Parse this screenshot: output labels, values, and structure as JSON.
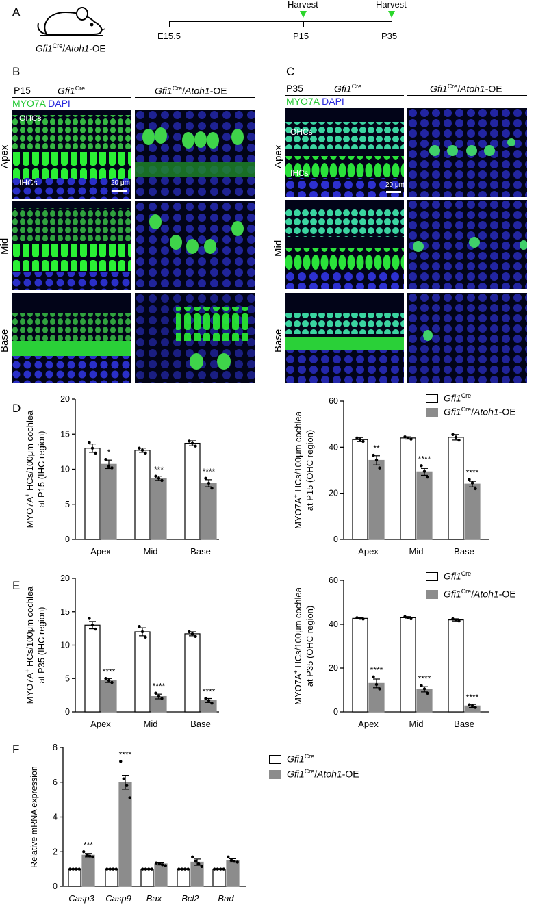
{
  "panelA": {
    "letter": "A",
    "harvest_label": "Harvest",
    "genotype": {
      "gene": "Gfi1",
      "sup": "Cre",
      "suffix_gene": "Atoh1",
      "suffix": "-OE"
    },
    "timepoints": [
      "E15.5",
      "P15",
      "P35"
    ]
  },
  "panelB": {
    "letter": "B",
    "age": "P15",
    "ctrl": {
      "gene": "Gfi1",
      "sup": "Cre"
    },
    "oe": {
      "gene": "Gfi1",
      "sup": "Cre",
      "gene2": "Atoh1",
      "suffix": "-OE"
    },
    "stain1": "MYO7A",
    "stain2": "DAPI",
    "regions": [
      "Apex",
      "Mid",
      "Base"
    ],
    "ohc_label": "OHCs",
    "ihc_label": "IHCs",
    "scale": "20 μm"
  },
  "panelC": {
    "letter": "C",
    "age": "P35",
    "ctrl": {
      "gene": "Gfi1",
      "sup": "Cre"
    },
    "oe": {
      "gene": "Gfi1",
      "sup": "Cre",
      "gene2": "Atoh1",
      "suffix": "-OE"
    },
    "stain1": "MYO7A",
    "stain2": "DAPI",
    "regions": [
      "Apex",
      "Mid",
      "Base"
    ],
    "ohc_label": "OHCs",
    "ihc_label": "IHCs",
    "scale": "20 μm"
  },
  "legend": {
    "ctrl": {
      "gene": "Gfi1",
      "sup": "Cre"
    },
    "oe": {
      "gene": "Gfi1",
      "sup": "Cre",
      "gene2": "Atoh1",
      "suffix": "-OE"
    }
  },
  "colors": {
    "ctrl_fill": "#ffffff",
    "oe_fill": "#8c8c8c",
    "myo7a": "#22c832",
    "dapi": "#2828dc"
  },
  "chart_data": [
    {
      "id": "D-left",
      "panel": "D",
      "type": "bar",
      "ylabel_line1": "MYO7A",
      "ylabel_sup": "+",
      "ylabel_rest": " HCs/100μm cochlea",
      "ylabel_line2": "at P15 (IHC region)",
      "categories": [
        "Apex",
        "Mid",
        "Base"
      ],
      "ylim": [
        0,
        20
      ],
      "yticks": [
        0,
        5,
        10,
        15,
        20
      ],
      "series": [
        {
          "values": [
            13.0,
            12.7,
            13.7
          ],
          "err": [
            0.6,
            0.3,
            0.35
          ],
          "points": [
            [
              13.8,
              13.0,
              12.3
            ],
            [
              13.0,
              12.7,
              12.3
            ],
            [
              14.0,
              13.7,
              13.3
            ]
          ]
        },
        {
          "values": [
            10.7,
            8.7,
            8.0
          ],
          "err": [
            0.6,
            0.3,
            0.5
          ],
          "points": [
            [
              11.4,
              10.4,
              10.2
            ],
            [
              9.0,
              8.7,
              8.4
            ],
            [
              8.7,
              8.0,
              7.3
            ]
          ]
        }
      ],
      "stars": [
        "*",
        "***",
        "****"
      ]
    },
    {
      "id": "D-right",
      "panel": "D",
      "type": "bar",
      "ylabel_line1": "MYO7A",
      "ylabel_sup": "+",
      "ylabel_rest": " HCs/100μm cochlea",
      "ylabel_line2": "at P15 (OHC region)",
      "categories": [
        "Apex",
        "Mid",
        "Base"
      ],
      "ylim": [
        0,
        60
      ],
      "yticks": [
        0,
        20,
        40,
        60
      ],
      "series": [
        {
          "values": [
            43.3,
            44.0,
            44.3
          ],
          "err": [
            0.9,
            0.5,
            1.2
          ],
          "points": [
            [
              44.0,
              43.3,
              42.5
            ],
            [
              44.5,
              44.0,
              43.5
            ],
            [
              45.5,
              44.3,
              43.0
            ]
          ]
        },
        {
          "values": [
            34.3,
            29.3,
            24.0
          ],
          "err": [
            2.0,
            1.5,
            1.2
          ],
          "points": [
            [
              36.5,
              34.5,
              31.0
            ],
            [
              32.0,
              29.5,
              27.0
            ],
            [
              26.0,
              24.5,
              22.0
            ]
          ]
        }
      ],
      "stars": [
        "**",
        "****",
        "****"
      ]
    },
    {
      "id": "E-left",
      "panel": "E",
      "type": "bar",
      "ylabel_line1": "MYO7A",
      "ylabel_sup": "+",
      "ylabel_rest": " HCs/100μm cochlea",
      "ylabel_line2": "at P35 (IHC region)",
      "categories": [
        "Apex",
        "Mid",
        "Base"
      ],
      "ylim": [
        0,
        20
      ],
      "yticks": [
        0,
        5,
        10,
        15,
        20
      ],
      "series": [
        {
          "values": [
            13.0,
            12.0,
            11.7
          ],
          "err": [
            0.55,
            0.6,
            0.3
          ],
          "points": [
            [
              14.0,
              13.0,
              12.4
            ],
            [
              12.8,
              12.0,
              11.2
            ],
            [
              12.0,
              11.7,
              11.3
            ]
          ]
        },
        {
          "values": [
            4.7,
            2.3,
            1.7
          ],
          "err": [
            0.3,
            0.35,
            0.3
          ],
          "points": [
            [
              5.0,
              4.7,
              4.4
            ],
            [
              2.8,
              2.3,
              2.0
            ],
            [
              2.0,
              1.7,
              1.3
            ]
          ]
        }
      ],
      "stars": [
        "****",
        "****",
        "****"
      ]
    },
    {
      "id": "E-right",
      "panel": "E",
      "type": "bar",
      "ylabel_line1": "MYO7A",
      "ylabel_sup": "+",
      "ylabel_rest": " HCs/100μm cochlea",
      "ylabel_line2": "at P35 (OHC region)",
      "categories": [
        "Apex",
        "Mid",
        "Base"
      ],
      "ylim": [
        0,
        60
      ],
      "yticks": [
        0,
        20,
        40,
        60
      ],
      "series": [
        {
          "values": [
            42.7,
            43.0,
            42.0
          ],
          "err": [
            0.3,
            0.5,
            0.5
          ],
          "points": [
            [
              43.0,
              42.7,
              42.4
            ],
            [
              43.5,
              43.0,
              42.5
            ],
            [
              42.5,
              42.0,
              41.5
            ]
          ]
        },
        {
          "values": [
            13.0,
            10.3,
            2.7
          ],
          "err": [
            2.0,
            1.2,
            0.7
          ],
          "points": [
            [
              16.0,
              12.5,
              10.5
            ],
            [
              12.0,
              10.5,
              8.5
            ],
            [
              3.2,
              2.7,
              2.0
            ]
          ]
        }
      ],
      "stars": [
        "****",
        "****",
        "****"
      ]
    },
    {
      "id": "F",
      "panel": "F",
      "type": "bar",
      "ylabel": "Relative mRNA expression",
      "categories": [
        "Casp3",
        "Casp9",
        "Bax",
        "Bcl2",
        "Bad"
      ],
      "ylim": [
        0,
        8
      ],
      "yticks": [
        0,
        2,
        4,
        6,
        8
      ],
      "series": [
        {
          "values": [
            1.0,
            1.0,
            1.0,
            1.0,
            1.0
          ],
          "err": [
            0.03,
            0.03,
            0.03,
            0.03,
            0.03
          ],
          "points": [
            [
              1.0,
              1.0,
              1.0,
              1.0
            ],
            [
              1.0,
              1.0,
              1.0,
              1.0
            ],
            [
              1.0,
              1.0,
              1.0,
              1.0
            ],
            [
              1.0,
              1.0,
              1.0,
              1.0
            ],
            [
              1.0,
              1.0,
              1.0,
              1.0
            ]
          ]
        },
        {
          "values": [
            1.8,
            6.0,
            1.3,
            1.4,
            1.5
          ],
          "err": [
            0.1,
            0.4,
            0.06,
            0.18,
            0.1
          ],
          "points": [
            [
              2.0,
              1.8,
              1.75,
              1.7
            ],
            [
              7.2,
              6.2,
              5.8,
              5.1
            ],
            [
              1.35,
              1.3,
              1.25,
              1.2
            ],
            [
              1.7,
              1.45,
              1.3,
              1.15
            ],
            [
              1.7,
              1.5,
              1.45,
              1.4
            ]
          ]
        }
      ],
      "stars": [
        "***",
        "****",
        "",
        "",
        ""
      ]
    }
  ]
}
